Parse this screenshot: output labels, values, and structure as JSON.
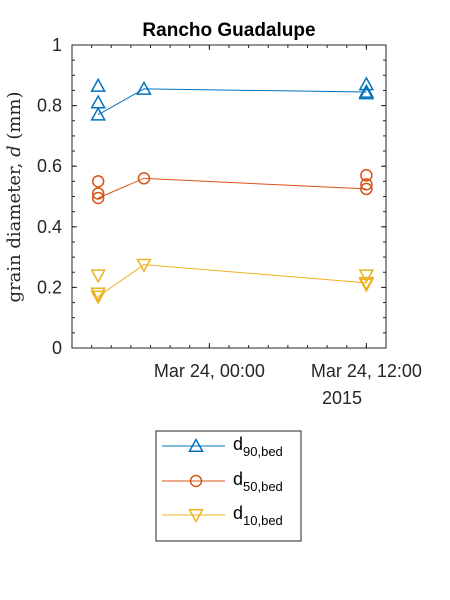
{
  "chart_data": {
    "type": "line",
    "title": "Rancho Guadalupe",
    "ylabel": "grain diameter, d (mm)",
    "ylabel_main": "grain diameter, ",
    "ylabel_var": "d",
    "ylabel_unit": " (mm)",
    "xlabel": "",
    "ylim": [
      0,
      1
    ],
    "y_ticks": [
      "0",
      "0.2",
      "0.4",
      "0.6",
      "0.8",
      "1"
    ],
    "y_tick_values": [
      0,
      0.2,
      0.4,
      0.6,
      0.8,
      1
    ],
    "x_ticks": [
      "Mar 24, 00:00",
      "Mar 24, 12:00"
    ],
    "x_tick_values": [
      "2015-03-24 00:00",
      "2015-03-24 12:00"
    ],
    "x_secondary_label": "2015",
    "xlim": [
      "2015-03-23 13:30",
      "2015-03-24 13:30"
    ],
    "grid": false,
    "legend_position": "below-plot",
    "series": [
      {
        "name": "d90,bed",
        "name_main": "d",
        "name_sub": "90,bed",
        "color": "#0072BD",
        "marker": "triangle-up",
        "points": [
          {
            "x": "2015-03-23 15:30",
            "y": 0.865
          },
          {
            "x": "2015-03-23 15:30",
            "y": 0.81
          },
          {
            "x": "2015-03-23 15:30",
            "y": 0.77
          },
          {
            "x": "2015-03-23 19:00",
            "y": 0.855
          },
          {
            "x": "2015-03-24 12:00",
            "y": 0.87
          },
          {
            "x": "2015-03-24 12:00",
            "y": 0.845
          },
          {
            "x": "2015-03-24 12:00",
            "y": 0.84
          }
        ],
        "line": [
          {
            "x": "2015-03-23 15:30",
            "y": 0.77
          },
          {
            "x": "2015-03-23 19:00",
            "y": 0.855
          },
          {
            "x": "2015-03-24 12:00",
            "y": 0.845
          }
        ]
      },
      {
        "name": "d50,bed",
        "name_main": "d",
        "name_sub": "50,bed",
        "color": "#D95319",
        "marker": "circle",
        "points": [
          {
            "x": "2015-03-23 15:30",
            "y": 0.55
          },
          {
            "x": "2015-03-23 15:30",
            "y": 0.51
          },
          {
            "x": "2015-03-23 15:30",
            "y": 0.495
          },
          {
            "x": "2015-03-23 19:00",
            "y": 0.56
          },
          {
            "x": "2015-03-24 12:00",
            "y": 0.57
          },
          {
            "x": "2015-03-24 12:00",
            "y": 0.54
          },
          {
            "x": "2015-03-24 12:00",
            "y": 0.525
          }
        ],
        "line": [
          {
            "x": "2015-03-23 15:30",
            "y": 0.495
          },
          {
            "x": "2015-03-23 19:00",
            "y": 0.56
          },
          {
            "x": "2015-03-24 12:00",
            "y": 0.525
          }
        ]
      },
      {
        "name": "d10,bed",
        "name_main": "d",
        "name_sub": "10,bed",
        "color": "#EDB120",
        "marker": "triangle-down",
        "points": [
          {
            "x": "2015-03-23 15:30",
            "y": 0.24
          },
          {
            "x": "2015-03-23 15:30",
            "y": 0.18
          },
          {
            "x": "2015-03-23 15:30",
            "y": 0.17
          },
          {
            "x": "2015-03-23 19:00",
            "y": 0.275
          },
          {
            "x": "2015-03-24 12:00",
            "y": 0.24
          },
          {
            "x": "2015-03-24 12:00",
            "y": 0.215
          },
          {
            "x": "2015-03-24 12:00",
            "y": 0.21
          }
        ],
        "line": [
          {
            "x": "2015-03-23 15:30",
            "y": 0.17
          },
          {
            "x": "2015-03-23 19:00",
            "y": 0.275
          },
          {
            "x": "2015-03-24 12:00",
            "y": 0.215
          }
        ]
      }
    ]
  }
}
